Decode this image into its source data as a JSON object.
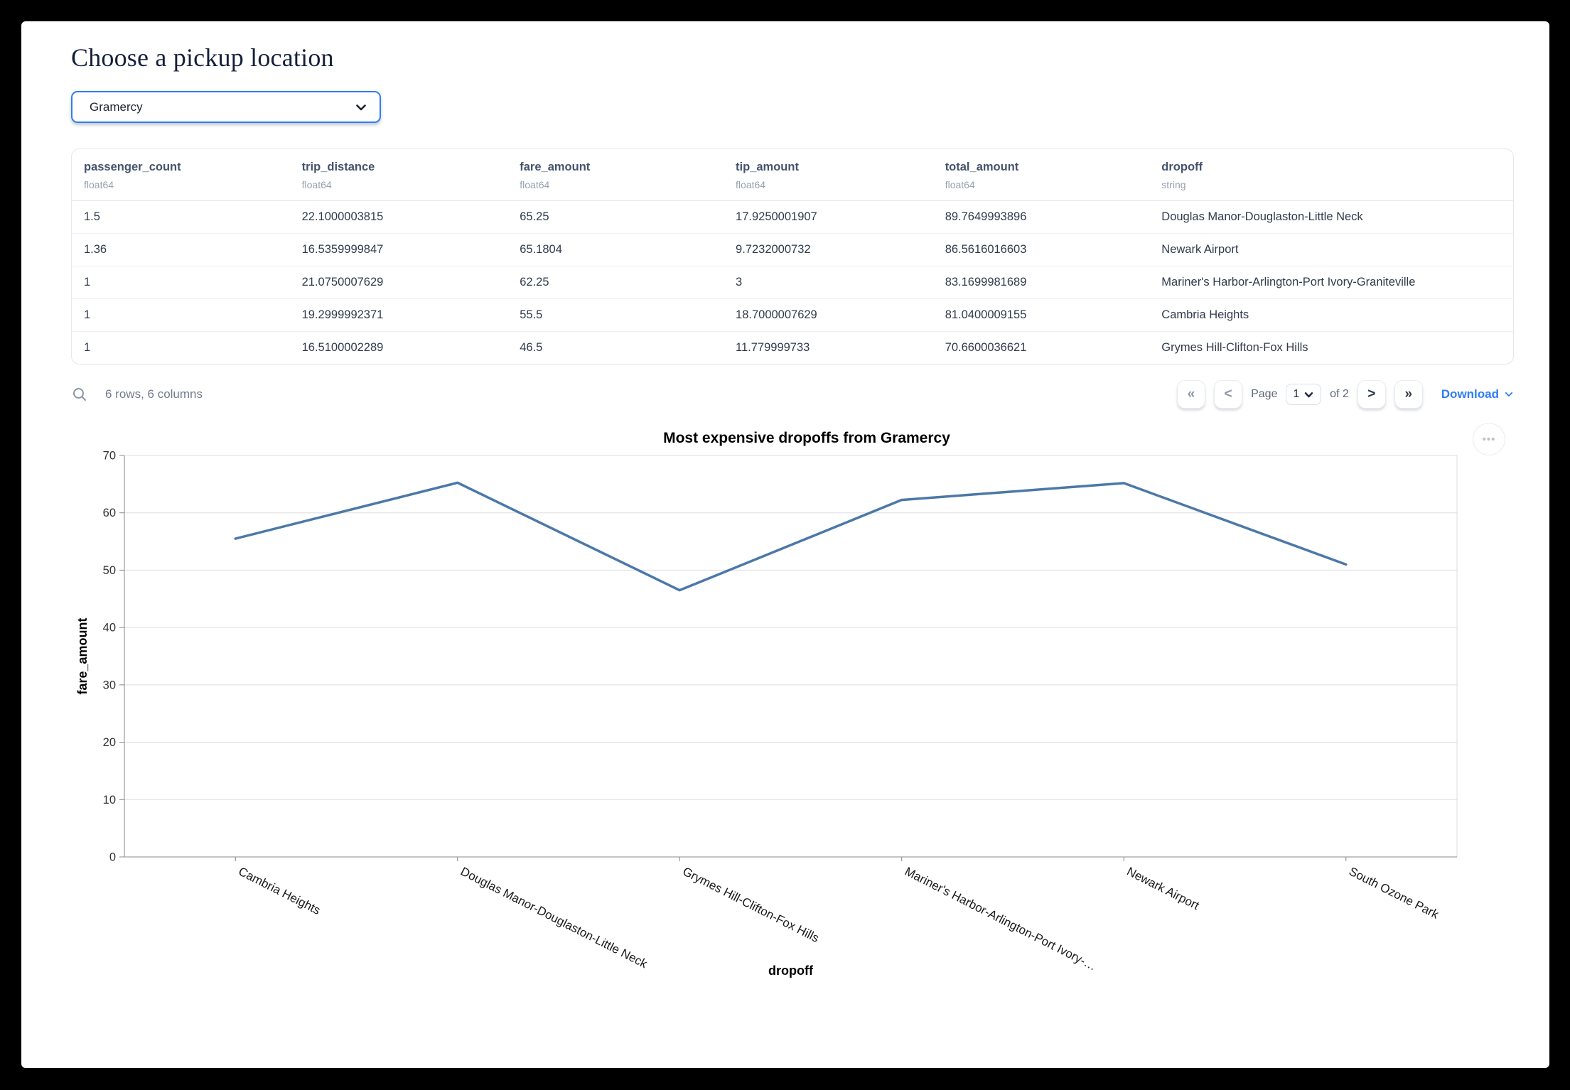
{
  "page": {
    "title": "Choose a pickup location"
  },
  "pickup_select": {
    "value": "Gramercy"
  },
  "table": {
    "columns": [
      {
        "name": "passenger_count",
        "dtype": "float64"
      },
      {
        "name": "trip_distance",
        "dtype": "float64"
      },
      {
        "name": "fare_amount",
        "dtype": "float64"
      },
      {
        "name": "tip_amount",
        "dtype": "float64"
      },
      {
        "name": "total_amount",
        "dtype": "float64"
      },
      {
        "name": "dropoff",
        "dtype": "string"
      }
    ],
    "rows": [
      [
        "1.5",
        "22.1000003815",
        "65.25",
        "17.9250001907",
        "89.7649993896",
        "Douglas Manor-Douglaston-Little Neck"
      ],
      [
        "1.36",
        "16.5359999847",
        "65.1804",
        "9.7232000732",
        "86.5616016603",
        "Newark Airport"
      ],
      [
        "1",
        "21.0750007629",
        "62.25",
        "3",
        "83.1699981689",
        "Mariner's Harbor-Arlington-Port Ivory-Graniteville"
      ],
      [
        "1",
        "19.2999992371",
        "55.5",
        "18.7000007629",
        "81.0400009155",
        "Cambria Heights"
      ],
      [
        "1",
        "16.5100002289",
        "46.5",
        "11.779999733",
        "70.6600036621",
        "Grymes Hill-Clifton-Fox Hills"
      ]
    ]
  },
  "table_footer": {
    "summary": "6 rows, 6 columns",
    "first_button": "«",
    "prev_button": "<",
    "next_button": ">",
    "last_button": "»",
    "page_label": "Page",
    "page_value": "1",
    "of_label": "of 2",
    "download_label": "Download"
  },
  "chart_menu": {
    "icon_label": "•••"
  },
  "chart_data": {
    "type": "line",
    "title": "Most expensive dropoffs from Gramercy",
    "xlabel": "dropoff",
    "ylabel": "fare_amount",
    "ylim": [
      0,
      70
    ],
    "yticks": [
      0,
      10,
      20,
      30,
      40,
      50,
      60,
      70
    ],
    "categories": [
      "Cambria Heights",
      "Douglas Manor-Douglaston-Little Neck",
      "Grymes Hill-Clifton-Fox Hills",
      "Mariner's Harbor-Arlington-Port Ivory-…",
      "Newark Airport",
      "South Ozone Park"
    ],
    "values": [
      55.5,
      65.25,
      46.5,
      62.25,
      65.1804,
      51
    ],
    "line_color": "#4c78a8",
    "grid": true,
    "legend": "none"
  },
  "colors": {
    "accent_blue": "#2f7cf6",
    "download_link": "#2e7cf6",
    "chart_line": "#4c78a8"
  }
}
